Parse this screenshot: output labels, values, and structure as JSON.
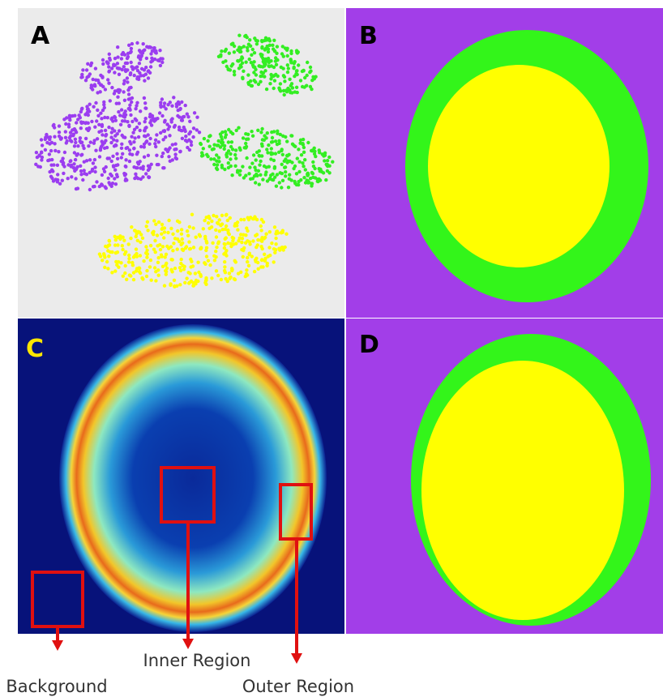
{
  "panels": [
    {
      "label": "A"
    },
    {
      "label": "B"
    },
    {
      "label": "C"
    },
    {
      "label": "D"
    }
  ],
  "annotations": [
    {
      "label": "Inner Region"
    },
    {
      "label": "Background"
    },
    {
      "label": "Outer Region"
    }
  ]
}
